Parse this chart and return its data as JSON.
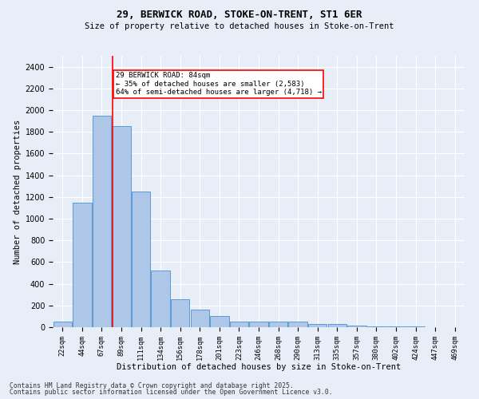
{
  "title1": "29, BERWICK ROAD, STOKE-ON-TRENT, ST1 6ER",
  "title2": "Size of property relative to detached houses in Stoke-on-Trent",
  "xlabel": "Distribution of detached houses by size in Stoke-on-Trent",
  "ylabel": "Number of detached properties",
  "categories": [
    "22sqm",
    "44sqm",
    "67sqm",
    "89sqm",
    "111sqm",
    "134sqm",
    "156sqm",
    "178sqm",
    "201sqm",
    "223sqm",
    "246sqm",
    "268sqm",
    "290sqm",
    "313sqm",
    "335sqm",
    "357sqm",
    "380sqm",
    "402sqm",
    "424sqm",
    "447sqm",
    "469sqm"
  ],
  "values": [
    50,
    1150,
    1950,
    1850,
    1250,
    520,
    260,
    160,
    100,
    55,
    55,
    50,
    50,
    30,
    30,
    15,
    10,
    5,
    5,
    3,
    2
  ],
  "bar_color": "#aec6e8",
  "bar_edge_color": "#5b9bd5",
  "red_line_x": 2.55,
  "annotation_text": "29 BERWICK ROAD: 84sqm\n← 35% of detached houses are smaller (2,583)\n64% of semi-detached houses are larger (4,718) →",
  "annotation_box_color": "white",
  "annotation_box_edge_color": "red",
  "ylim": [
    0,
    2500
  ],
  "yticks": [
    0,
    200,
    400,
    600,
    800,
    1000,
    1200,
    1400,
    1600,
    1800,
    2000,
    2200,
    2400
  ],
  "background_color": "#e8eef7",
  "grid_color": "white",
  "footer1": "Contains HM Land Registry data © Crown copyright and database right 2025.",
  "footer2": "Contains public sector information licensed under the Open Government Licence v3.0."
}
